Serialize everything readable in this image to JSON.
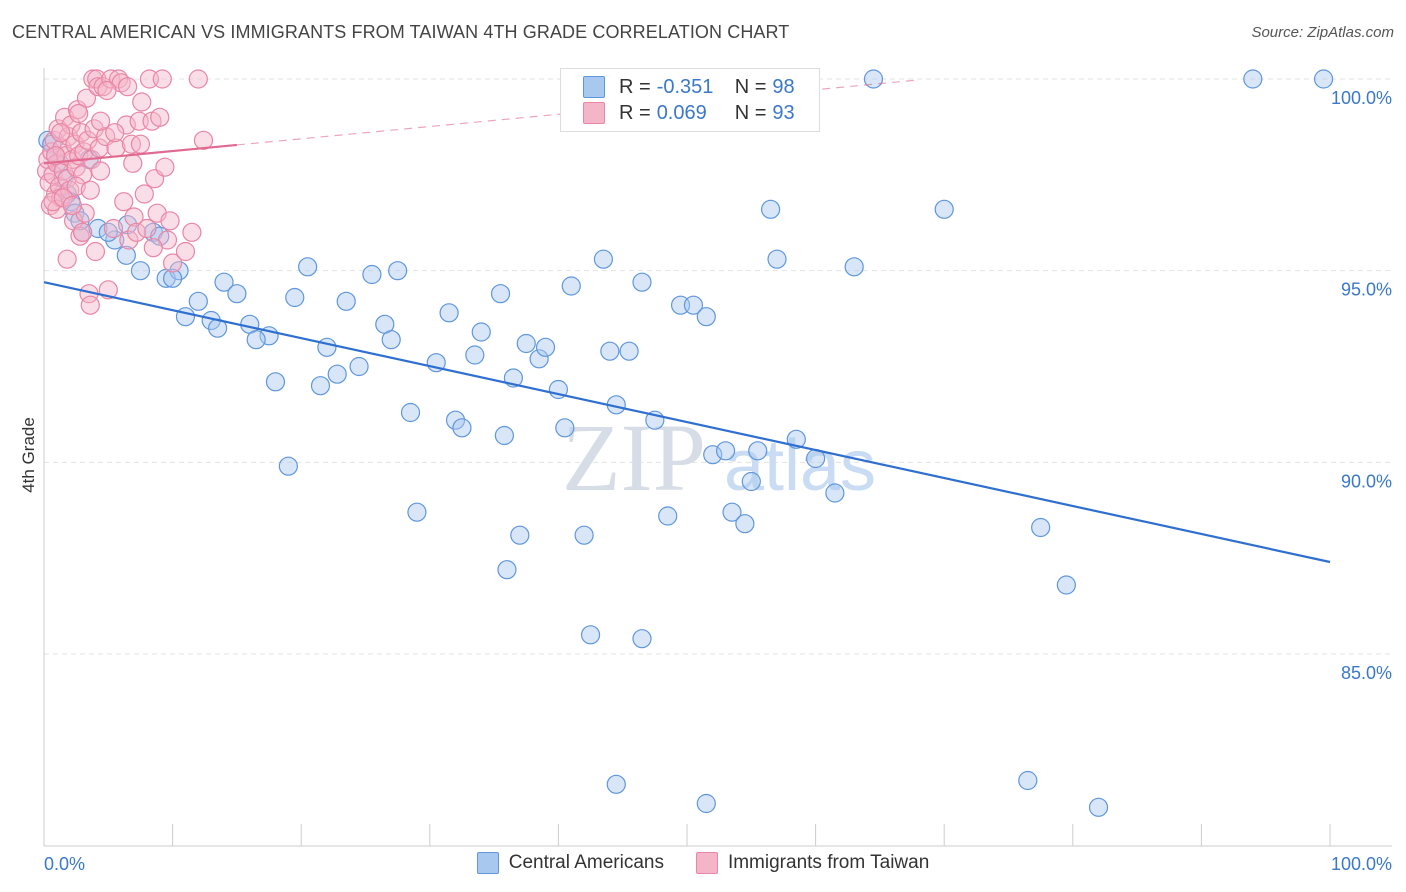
{
  "title": "CENTRAL AMERICAN VS IMMIGRANTS FROM TAIWAN 4TH GRADE CORRELATION CHART",
  "source": "Source: ZipAtlas.com",
  "watermark": {
    "zip": "ZIP",
    "atlas": "atlas"
  },
  "legend_top": [
    {
      "r_label": "R =",
      "r_value": "-0.351",
      "n_label": "N =",
      "n_value": "98",
      "color": "#a9c8ef"
    },
    {
      "r_label": "R =",
      "r_value": "0.069",
      "n_label": "N =",
      "n_value": "93",
      "color": "#f5b5c9"
    }
  ],
  "chart_data": {
    "type": "scatter",
    "title": "CENTRAL AMERICAN VS IMMIGRANTS FROM TAIWAN 4TH GRADE CORRELATION CHART",
    "xlabel": "",
    "ylabel": "4th Grade",
    "xlim": [
      0,
      100
    ],
    "ylim": [
      80.0,
      101.0
    ],
    "x_tick_labels": [
      "0.0%",
      "100.0%"
    ],
    "y_ticks": [
      85.0,
      90.0,
      95.0,
      100.0
    ],
    "y_tick_labels": [
      "85.0%",
      "90.0%",
      "95.0%",
      "100.0%"
    ],
    "grid": true,
    "legend_position": "bottom",
    "series": [
      {
        "name": "Central Americans",
        "color": "#a9c8ef",
        "stroke": "#5f97dc",
        "trend": {
          "x": [
            0,
            100
          ],
          "y": [
            94.7,
            87.4
          ],
          "color": "#2f6fd0",
          "dashed_from": null
        },
        "points": [
          [
            0.3,
            98.4
          ],
          [
            0.6,
            98.3
          ],
          [
            0.9,
            98.0
          ],
          [
            1.2,
            97.8
          ],
          [
            1.5,
            97.4
          ],
          [
            1.8,
            97.0
          ],
          [
            2.1,
            96.8
          ],
          [
            2.4,
            96.5
          ],
          [
            3.0,
            96.0
          ],
          [
            4.2,
            96.1
          ],
          [
            5.5,
            95.8
          ],
          [
            5.0,
            96.0
          ],
          [
            6.5,
            96.2
          ],
          [
            8.5,
            96.0
          ],
          [
            9.0,
            95.9
          ],
          [
            6.4,
            95.4
          ],
          [
            7.5,
            95.0
          ],
          [
            9.5,
            94.8
          ],
          [
            10.5,
            95.0
          ],
          [
            12.0,
            94.2
          ],
          [
            11.0,
            93.8
          ],
          [
            14.0,
            94.7
          ],
          [
            13.0,
            93.7
          ],
          [
            15.0,
            94.4
          ],
          [
            16.0,
            93.6
          ],
          [
            17.5,
            93.3
          ],
          [
            16.5,
            93.2
          ],
          [
            19.5,
            94.3
          ],
          [
            20.5,
            95.1
          ],
          [
            22.0,
            93.0
          ],
          [
            23.5,
            94.2
          ],
          [
            22.8,
            92.3
          ],
          [
            24.5,
            92.5
          ],
          [
            25.5,
            94.9
          ],
          [
            26.5,
            93.6
          ],
          [
            27.0,
            93.2
          ],
          [
            27.5,
            95.0
          ],
          [
            21.5,
            92.0
          ],
          [
            18.0,
            92.1
          ],
          [
            28.5,
            91.3
          ],
          [
            29.0,
            88.7
          ],
          [
            30.5,
            92.6
          ],
          [
            31.5,
            93.9
          ],
          [
            32.0,
            91.1
          ],
          [
            32.5,
            90.9
          ],
          [
            33.5,
            92.8
          ],
          [
            34.0,
            93.4
          ],
          [
            35.5,
            94.4
          ],
          [
            35.8,
            90.7
          ],
          [
            36.5,
            92.2
          ],
          [
            37.0,
            88.1
          ],
          [
            37.5,
            93.1
          ],
          [
            38.5,
            92.7
          ],
          [
            39.0,
            93.0
          ],
          [
            40.0,
            91.9
          ],
          [
            40.5,
            90.9
          ],
          [
            41.0,
            94.6
          ],
          [
            42.0,
            88.1
          ],
          [
            43.5,
            95.3
          ],
          [
            44.5,
            91.5
          ],
          [
            44.0,
            92.9
          ],
          [
            45.5,
            92.9
          ],
          [
            46.5,
            94.7
          ],
          [
            47.5,
            91.1
          ],
          [
            48.5,
            88.6
          ],
          [
            49.5,
            94.1
          ],
          [
            50.5,
            94.1
          ],
          [
            51.5,
            93.8
          ],
          [
            52.0,
            90.2
          ],
          [
            53.0,
            90.3
          ],
          [
            53.5,
            88.7
          ],
          [
            54.5,
            88.4
          ],
          [
            55.0,
            89.5
          ],
          [
            55.5,
            90.3
          ],
          [
            56.5,
            96.6
          ],
          [
            57.0,
            95.3
          ],
          [
            58.5,
            90.6
          ],
          [
            60.0,
            90.1
          ],
          [
            61.5,
            89.2
          ],
          [
            63.0,
            95.1
          ],
          [
            64.5,
            100.0
          ],
          [
            70.0,
            96.6
          ],
          [
            77.5,
            88.3
          ],
          [
            79.5,
            86.8
          ],
          [
            36.0,
            87.2
          ],
          [
            42.5,
            85.5
          ],
          [
            46.5,
            85.4
          ],
          [
            44.5,
            81.6
          ],
          [
            51.5,
            81.1
          ],
          [
            76.5,
            81.7
          ],
          [
            82.0,
            81.0
          ],
          [
            94.0,
            100.0
          ],
          [
            99.5,
            100.0
          ],
          [
            19.0,
            89.9
          ],
          [
            13.5,
            93.5
          ],
          [
            10.0,
            94.8
          ],
          [
            3.5,
            97.9
          ],
          [
            2.8,
            96.3
          ]
        ]
      },
      {
        "name": "Immigrants from Taiwan",
        "color": "#f5b5c9",
        "stroke": "#e985a5",
        "trend": {
          "x": [
            0,
            100
          ],
          "y": [
            97.8,
            101.0
          ],
          "color": "#e06a90",
          "solid_until": 15
        },
        "points": [
          [
            0.2,
            97.6
          ],
          [
            0.3,
            97.9
          ],
          [
            0.4,
            97.3
          ],
          [
            0.5,
            96.7
          ],
          [
            0.6,
            98.1
          ],
          [
            0.7,
            97.5
          ],
          [
            0.8,
            98.4
          ],
          [
            0.9,
            97.0
          ],
          [
            1.0,
            97.8
          ],
          [
            1.1,
            98.7
          ],
          [
            1.2,
            97.2
          ],
          [
            1.3,
            96.9
          ],
          [
            1.4,
            98.2
          ],
          [
            1.5,
            97.6
          ],
          [
            1.6,
            99.0
          ],
          [
            1.7,
            98.0
          ],
          [
            1.8,
            97.4
          ],
          [
            1.9,
            98.5
          ],
          [
            2.0,
            97.1
          ],
          [
            2.1,
            98.8
          ],
          [
            2.2,
            97.9
          ],
          [
            2.3,
            96.3
          ],
          [
            2.4,
            98.3
          ],
          [
            2.5,
            97.7
          ],
          [
            2.6,
            99.2
          ],
          [
            2.7,
            98.0
          ],
          [
            2.8,
            95.9
          ],
          [
            2.9,
            98.6
          ],
          [
            3.0,
            97.5
          ],
          [
            3.1,
            98.1
          ],
          [
            3.2,
            96.5
          ],
          [
            3.3,
            99.5
          ],
          [
            3.4,
            98.4
          ],
          [
            3.5,
            94.4
          ],
          [
            3.6,
            94.1
          ],
          [
            3.7,
            97.9
          ],
          [
            3.8,
            100.0
          ],
          [
            3.9,
            98.7
          ],
          [
            4.0,
            95.5
          ],
          [
            4.1,
            100.0
          ],
          [
            4.2,
            99.8
          ],
          [
            4.3,
            98.2
          ],
          [
            4.4,
            97.6
          ],
          [
            4.6,
            99.8
          ],
          [
            4.8,
            98.5
          ],
          [
            5.0,
            94.5
          ],
          [
            5.2,
            100.0
          ],
          [
            5.4,
            96.1
          ],
          [
            5.6,
            98.2
          ],
          [
            5.8,
            100.0
          ],
          [
            6.0,
            99.9
          ],
          [
            6.2,
            96.8
          ],
          [
            6.4,
            98.8
          ],
          [
            6.6,
            95.8
          ],
          [
            6.8,
            98.3
          ],
          [
            7.0,
            96.4
          ],
          [
            7.2,
            96.0
          ],
          [
            7.4,
            98.9
          ],
          [
            7.6,
            99.4
          ],
          [
            7.8,
            97.0
          ],
          [
            8.0,
            96.1
          ],
          [
            8.2,
            100.0
          ],
          [
            8.4,
            98.9
          ],
          [
            8.6,
            97.4
          ],
          [
            8.8,
            96.5
          ],
          [
            9.0,
            99.0
          ],
          [
            9.2,
            100.0
          ],
          [
            9.4,
            97.7
          ],
          [
            9.6,
            95.8
          ],
          [
            9.8,
            96.3
          ],
          [
            10.0,
            95.2
          ],
          [
            11.0,
            95.5
          ],
          [
            11.5,
            96.0
          ],
          [
            12.0,
            100.0
          ],
          [
            12.4,
            98.4
          ],
          [
            2.5,
            97.2
          ],
          [
            1.0,
            96.6
          ],
          [
            0.7,
            96.8
          ],
          [
            1.5,
            96.9
          ],
          [
            3.6,
            97.1
          ],
          [
            4.4,
            98.9
          ],
          [
            5.5,
            98.6
          ],
          [
            6.5,
            99.8
          ],
          [
            7.5,
            98.3
          ],
          [
            8.5,
            95.6
          ],
          [
            1.8,
            95.3
          ],
          [
            2.2,
            96.7
          ],
          [
            3.0,
            96.0
          ],
          [
            0.9,
            98.0
          ],
          [
            1.3,
            98.6
          ],
          [
            2.7,
            99.1
          ],
          [
            4.9,
            99.7
          ],
          [
            6.9,
            97.8
          ]
        ]
      }
    ]
  }
}
